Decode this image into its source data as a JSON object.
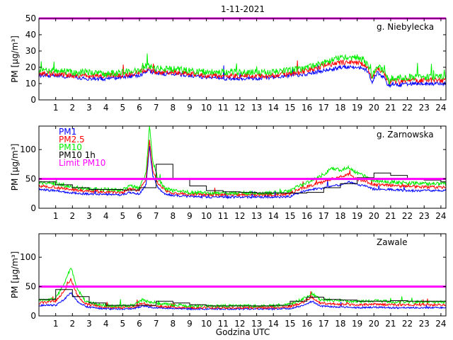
{
  "chart_data": {
    "type": "line",
    "title": "1-11-2021",
    "xlabel": "Godzina UTC",
    "xlim": [
      0,
      24.3
    ],
    "x_ticks": [
      1,
      2,
      3,
      4,
      5,
      6,
      7,
      8,
      9,
      10,
      11,
      12,
      13,
      14,
      15,
      16,
      17,
      18,
      19,
      20,
      21,
      22,
      23,
      24
    ],
    "ylabel": "PM [μg/m³]",
    "limit_line": {
      "label": "Limit PM10",
      "value": 50,
      "color": "#ff00ff"
    },
    "series_colors": {
      "PM1": "#0000ff",
      "PM2.5": "#ff0000",
      "PM10": "#00ee00",
      "PM10 1h": "#000000"
    },
    "legend": [
      "PM1",
      "PM2.5",
      "PM10",
      "PM10 1h",
      "Limit PM10"
    ],
    "panels": [
      {
        "station": "g. Niebylecka",
        "ylim": [
          0,
          50
        ],
        "yticks": [
          0,
          10,
          20,
          30,
          40,
          50
        ],
        "x_hours": [
          0,
          1,
          2,
          3,
          4,
          5,
          6,
          6.5,
          7,
          8,
          9,
          10,
          11,
          12,
          13,
          14,
          15,
          16,
          17,
          18,
          19,
          19.3,
          19.6,
          19.9,
          20.2,
          20.6,
          20.9,
          21.1,
          21.5,
          22,
          23,
          23.8
        ],
        "series": [
          {
            "name": "PM1",
            "values": [
              15,
              15,
              14,
              13,
              13,
              14,
              15,
              18,
              16,
              16,
              15,
              14,
              13,
              13,
              13,
              14,
              15,
              16,
              18,
              20,
              20,
              20,
              18,
              11,
              17,
              14,
              8,
              10,
              9,
              10,
              10,
              10
            ]
          },
          {
            "name": "PM2.5",
            "values": [
              16,
              16,
              15,
              15,
              15,
              15,
              17,
              19,
              17,
              17,
              16,
              15,
              15,
              15,
              15,
              15,
              16,
              18,
              21,
              23,
              23,
              22,
              20,
              13,
              20,
              16,
              10,
              12,
              11,
              12,
              12,
              12
            ]
          },
          {
            "name": "PM10",
            "values": [
              18,
              18,
              17,
              17,
              16,
              17,
              18,
              21,
              19,
              19,
              18,
              17,
              17,
              17,
              17,
              17,
              18,
              20,
              23,
              26,
              26,
              25,
              22,
              15,
              21,
              18,
              11,
              14,
              13,
              14,
              14,
              14
            ]
          }
        ],
        "hourly_pm10": [],
        "noise": 2
      },
      {
        "station": "g. Zarnowska",
        "ylim": [
          0,
          140
        ],
        "yticks": [
          0,
          50,
          100
        ],
        "x_hours": [
          0,
          1,
          1.8,
          3,
          4,
          5,
          5.4,
          6,
          6.4,
          6.6,
          6.8,
          7.1,
          7.5,
          8,
          9,
          10,
          11,
          12,
          13,
          14,
          15,
          15.5,
          16,
          16.5,
          17,
          17.5,
          18,
          18.5,
          19,
          19.5,
          20,
          21,
          22,
          23,
          23.8
        ],
        "series": [
          {
            "name": "PM1",
            "values": [
              32,
              30,
              27,
              24,
              24,
              23,
              27,
              24,
              40,
              105,
              55,
              35,
              25,
              22,
              20,
              19,
              19,
              19,
              19,
              19,
              20,
              26,
              30,
              33,
              34,
              38,
              40,
              45,
              40,
              38,
              32,
              32,
              30,
              30,
              30
            ]
          },
          {
            "name": "PM2.5",
            "values": [
              38,
              36,
              32,
              29,
              28,
              27,
              33,
              30,
              50,
              115,
              65,
              42,
              31,
              26,
              24,
              23,
              23,
              23,
              23,
              23,
              25,
              32,
              37,
              41,
              45,
              50,
              54,
              58,
              50,
              46,
              40,
              39,
              37,
              36,
              36
            ]
          },
          {
            "name": "PM10",
            "values": [
              44,
              42,
              37,
              33,
              32,
              31,
              38,
              35,
              60,
              140,
              80,
              50,
              35,
              30,
              27,
              26,
              26,
              26,
              26,
              26,
              29,
              38,
              44,
              50,
              58,
              68,
              65,
              70,
              60,
              54,
              46,
              45,
              43,
              42,
              42
            ]
          }
        ],
        "hourly_pm10": [
          45,
          40,
          35,
          32,
          32,
          31,
          35,
          75,
          50,
          38,
          30,
          28,
          27,
          26,
          26,
          26,
          27,
          35,
          42,
          52,
          60,
          56,
          50,
          48,
          45
        ],
        "noise": 3
      },
      {
        "station": "Zawale",
        "ylim": [
          0,
          140
        ],
        "yticks": [
          0,
          50,
          100
        ],
        "x_hours": [
          0,
          1,
          1.5,
          1.9,
          2.3,
          2.8,
          3.5,
          4,
          5,
          5.7,
          6.2,
          6.6,
          7,
          8,
          9,
          10,
          11,
          12,
          13,
          14,
          15,
          15.7,
          16.3,
          16.8,
          17.3,
          18,
          19,
          20,
          21,
          22,
          23,
          23.8
        ],
        "series": [
          {
            "name": "PM1",
            "values": [
              18,
              18,
              28,
              40,
              25,
              16,
              13,
              12,
              12,
              13,
              17,
              15,
              14,
              13,
              12,
              12,
              12,
              12,
              12,
              12,
              13,
              17,
              25,
              17,
              16,
              15,
              14,
              15,
              14,
              14,
              14,
              14
            ]
          },
          {
            "name": "PM2.5",
            "values": [
              22,
              25,
              42,
              63,
              35,
              20,
              17,
              15,
              14,
              16,
              22,
              18,
              17,
              15,
              14,
              14,
              14,
              14,
              14,
              14,
              16,
              22,
              32,
              22,
              21,
              20,
              19,
              20,
              19,
              19,
              19,
              19
            ]
          },
          {
            "name": "PM10",
            "values": [
              26,
              30,
              55,
              82,
              45,
              24,
              20,
              18,
              17,
              19,
              28,
              23,
              21,
              19,
              17,
              17,
              17,
              17,
              17,
              17,
              20,
              28,
              38,
              28,
              27,
              26,
              24,
              26,
              24,
              24,
              24,
              24
            ]
          }
        ],
        "hourly_pm10": [
          28,
          45,
          33,
          22,
          18,
          18,
          18,
          25,
          22,
          19,
          17,
          17,
          17,
          17,
          18,
          25,
          32,
          28,
          27,
          25,
          25,
          26,
          25,
          25,
          25
        ],
        "noise": 2.5
      }
    ]
  }
}
